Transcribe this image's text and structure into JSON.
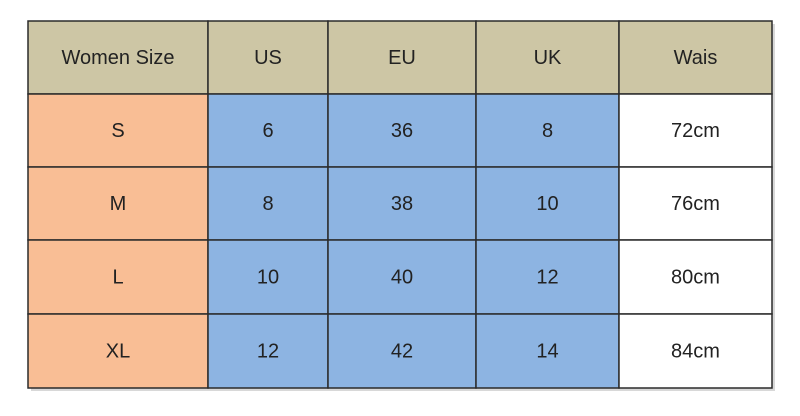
{
  "table": {
    "header": [
      "Women Size",
      "US",
      "EU",
      "UK",
      "Wais"
    ],
    "rows": [
      [
        "S",
        "6",
        "36",
        "8",
        "72cm"
      ],
      [
        "M",
        "8",
        "38",
        "10",
        "76cm"
      ],
      [
        "L",
        "10",
        "40",
        "12",
        "80cm"
      ],
      [
        "XL",
        "12",
        "42",
        "14",
        "84cm"
      ]
    ]
  }
}
